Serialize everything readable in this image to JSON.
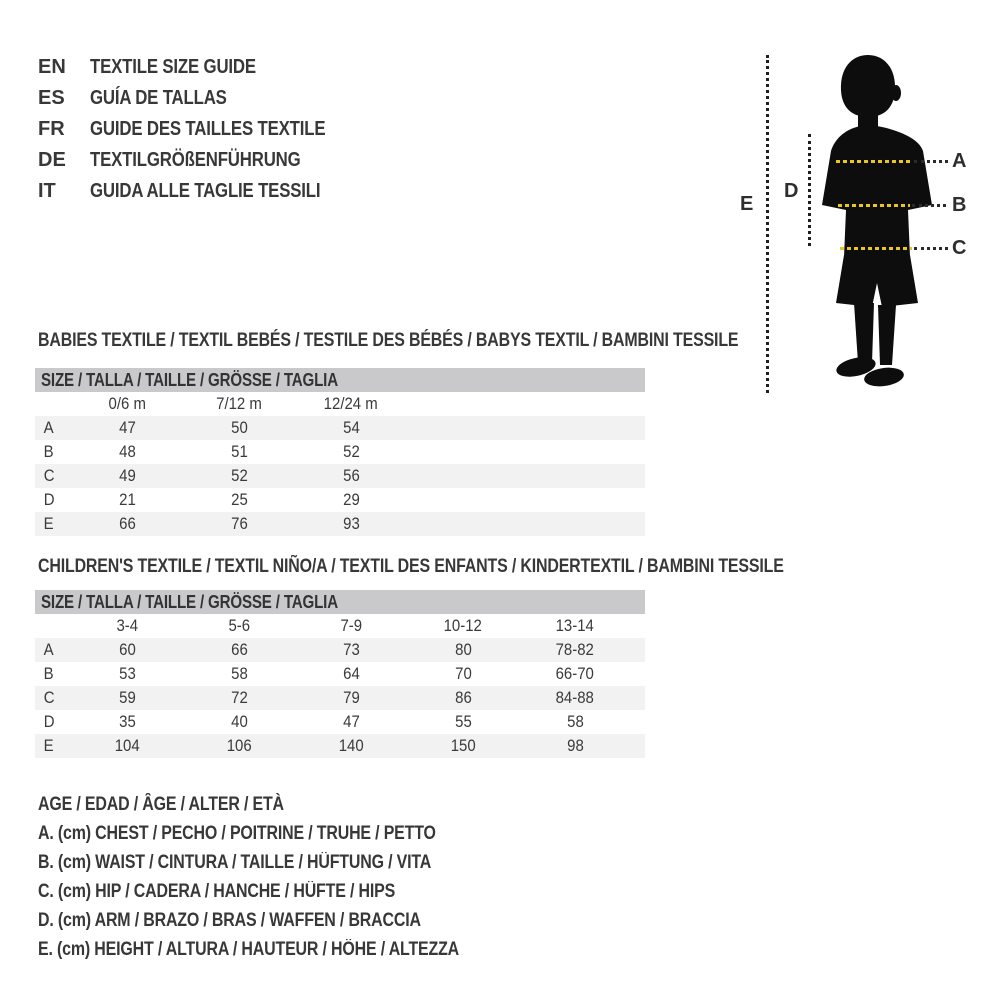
{
  "colors": {
    "text": "#383838",
    "band_bg": "#c9c9cb",
    "stripe_bg": "#f2f2f2",
    "accent_yellow": "#e9c71f",
    "silhouette": "#0d0d0d"
  },
  "header": {
    "languages": [
      {
        "code": "EN",
        "label": "TEXTILE SIZE GUIDE"
      },
      {
        "code": "ES",
        "label": "GUÍA DE TALLAS"
      },
      {
        "code": "FR",
        "label": "GUIDE DES TAILLES TEXTILE"
      },
      {
        "code": "DE",
        "label": "TEXTILGRÖßENFÜHRUNG"
      },
      {
        "code": "IT",
        "label": "GUIDA ALLE TAGLIE TESSILI"
      }
    ]
  },
  "figure": {
    "labels": [
      "A",
      "B",
      "C",
      "D",
      "E"
    ]
  },
  "babies_table": {
    "heading": "BABIES TEXTILE / TEXTIL BEBÉS / TESTILE DES BÉBÉS / BABYS TEXTIL / BAMBINI TESSILE",
    "size_band": "SIZE / TALLA / TAILLE / GRÖSSE / TAGLIA",
    "columns": [
      "0/6 m",
      "7/12 m",
      "12/24 m"
    ],
    "rows": [
      {
        "label": "A",
        "values": [
          "47",
          "50",
          "54"
        ]
      },
      {
        "label": "B",
        "values": [
          "48",
          "51",
          "52"
        ]
      },
      {
        "label": "C",
        "values": [
          "49",
          "52",
          "56"
        ]
      },
      {
        "label": "D",
        "values": [
          "21",
          "25",
          "29"
        ]
      },
      {
        "label": "E",
        "values": [
          "66",
          "76",
          "93"
        ]
      }
    ]
  },
  "children_table": {
    "heading": "CHILDREN'S TEXTILE / TEXTIL NIÑO/A / TEXTIL DES ENFANTS / KINDERTEXTIL / BAMBINI TESSILE",
    "size_band": "SIZE / TALLA / TAILLE / GRÖSSE / TAGLIA",
    "columns": [
      "3-4",
      "5-6",
      "7-9",
      "10-12",
      "13-14"
    ],
    "rows": [
      {
        "label": "A",
        "values": [
          "60",
          "66",
          "73",
          "80",
          "78-82"
        ]
      },
      {
        "label": "B",
        "values": [
          "53",
          "58",
          "64",
          "70",
          "66-70"
        ]
      },
      {
        "label": "C",
        "values": [
          "59",
          "72",
          "79",
          "86",
          "84-88"
        ]
      },
      {
        "label": "D",
        "values": [
          "35",
          "40",
          "47",
          "55",
          "58"
        ]
      },
      {
        "label": "E",
        "values": [
          "104",
          "106",
          "140",
          "150",
          "98"
        ]
      }
    ]
  },
  "legend": {
    "lines": [
      "AGE / EDAD / ÂGE / ALTER / ETÀ",
      "A. (cm) CHEST / PECHO / POITRINE / TRUHE / PETTO",
      "B. (cm) WAIST / CINTURA / TAILLE / HÜFTUNG / VITA",
      "C. (cm) HIP / CADERA / HANCHE / HÜFTE / HIPS",
      "D. (cm) ARM / BRAZO / BRAS / WAFFEN / BRACCIA",
      "E. (cm) HEIGHT / ALTURA / HAUTEUR / HÖHE / ALTEZZA"
    ]
  }
}
